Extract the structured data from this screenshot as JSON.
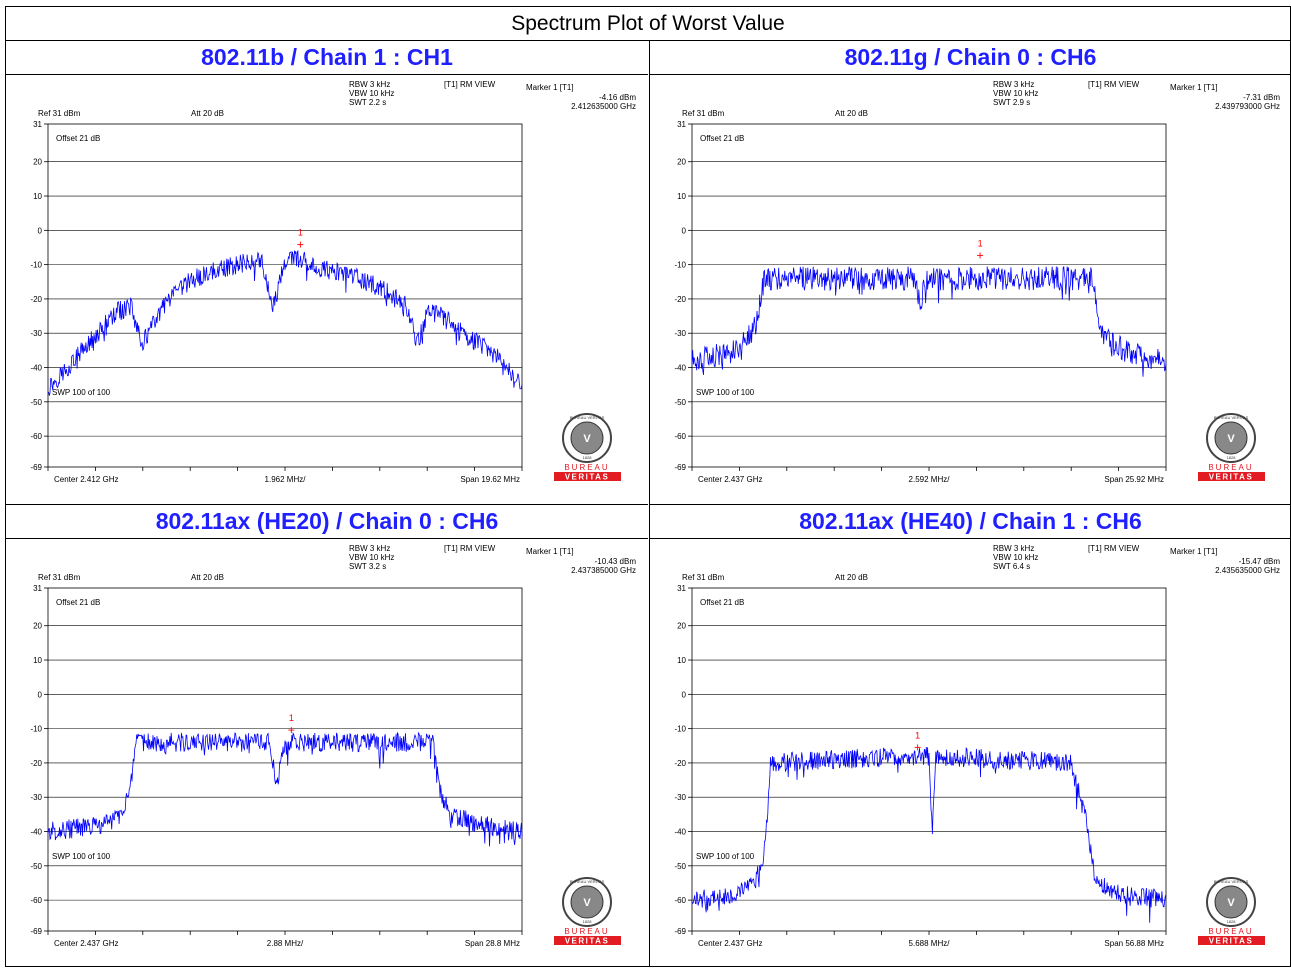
{
  "page_title": "Spectrum Plot of Worst Value",
  "logo": {
    "top_text": "BUREAU VERITAS",
    "year": "1828",
    "bottom_line1": "BUREAU",
    "bottom_line2": "VERITAS",
    "red": "#e31b23"
  },
  "colors": {
    "trace": "#0000ff",
    "marker": "#ff0000",
    "panel_title": "#1f1fff"
  },
  "chart_data": [
    {
      "type": "line",
      "title": "802.11b / Chain 1 : CH1",
      "header": {
        "rbw": "RBW 3 kHz",
        "vbw": "VBW 10 kHz",
        "swt": "SWT 2.2 s",
        "view": "[T1] RM VIEW",
        "ref": "Ref 31 dBm",
        "att": "Att  20 dB",
        "marker_label": "Marker 1 [T1]",
        "marker_level": "-4.16 dBm",
        "marker_freq": "2.412635000 GHz"
      },
      "offset": "Offset 21 dB",
      "sweep": "SWP 100 of 100",
      "footer": {
        "center": "Center 2.412 GHz",
        "div": "1.962 MHz/",
        "span": "Span 19.62 MHz"
      },
      "y_ticks": [
        "31",
        "20",
        "10",
        "0",
        "-10",
        "-20",
        "-30",
        "-40",
        "-50",
        "-60",
        "-69"
      ],
      "ylim": [
        -69,
        31
      ],
      "xlim": [
        2.40219,
        2.42181
      ],
      "x_unit": "GHz",
      "marker": {
        "label": "1",
        "x": 2.412635,
        "y": -4.16
      },
      "series": [
        {
          "x": [
            2.40219,
            2.403,
            2.404,
            2.405,
            2.4056,
            2.4061,
            2.407,
            2.408,
            2.409,
            2.41,
            2.411,
            2.4115,
            2.412,
            2.4125,
            2.413,
            2.414,
            2.415,
            2.416,
            2.417,
            2.4175,
            2.418,
            2.419,
            2.42,
            2.421,
            2.42181
          ],
          "y": [
            -46,
            -40,
            -32,
            -24,
            -22,
            -33,
            -22,
            -15,
            -12,
            -10,
            -8,
            -23,
            -9,
            -8,
            -10,
            -12,
            -14,
            -17,
            -22,
            -33,
            -22,
            -28,
            -33,
            -38,
            -46
          ]
        }
      ]
    },
    {
      "type": "line",
      "title": "802.11g / Chain 0 : CH6",
      "header": {
        "rbw": "RBW 3 kHz",
        "vbw": "VBW 10 kHz",
        "swt": "SWT 2.9 s",
        "view": "[T1] RM VIEW",
        "ref": "Ref 31 dBm",
        "att": "Att  20 dB",
        "marker_label": "Marker 1 [T1]",
        "marker_level": "-7.31 dBm",
        "marker_freq": "2.439793000 GHz"
      },
      "offset": "Offset 21 dB",
      "sweep": "SWP 100 of 100",
      "footer": {
        "center": "Center 2.437 GHz",
        "div": "2.592 MHz/",
        "span": "Span 25.92 MHz"
      },
      "y_ticks": [
        "31",
        "20",
        "10",
        "0",
        "-10",
        "-20",
        "-30",
        "-40",
        "-50",
        "-60",
        "-69"
      ],
      "ylim": [
        -69,
        31
      ],
      "xlim": [
        2.42404,
        2.44996
      ],
      "x_unit": "GHz",
      "marker": {
        "label": "1",
        "x": 2.439793,
        "y": -7.31
      },
      "series": [
        {
          "x": [
            2.42404,
            2.426,
            2.427,
            2.4275,
            2.428,
            2.43,
            2.434,
            2.4362,
            2.4365,
            2.4368,
            2.44,
            2.444,
            2.446,
            2.4463,
            2.447,
            2.448,
            2.44996
          ],
          "y": [
            -38,
            -36,
            -32,
            -28,
            -14,
            -14,
            -14,
            -14,
            -22,
            -14,
            -14,
            -14,
            -14,
            -28,
            -33,
            -36,
            -38
          ]
        }
      ]
    },
    {
      "type": "line",
      "title": "802.11ax (HE20) / Chain 0 : CH6",
      "header": {
        "rbw": "RBW 3 kHz",
        "vbw": "VBW 10 kHz",
        "swt": "SWT 3.2 s",
        "view": "[T1] RM VIEW",
        "ref": "Ref 31 dBm",
        "att": "Att  20 dB",
        "marker_label": "Marker 1 [T1]",
        "marker_level": "-10.43 dBm",
        "marker_freq": "2.437385000 GHz"
      },
      "offset": "Offset 21 dB",
      "sweep": "SWP 100 of 100",
      "footer": {
        "center": "Center 2.437 GHz",
        "div": "2.88 MHz/",
        "span": "Span 28.8 MHz"
      },
      "y_ticks": [
        "31",
        "20",
        "10",
        "0",
        "-10",
        "-20",
        "-30",
        "-40",
        "-50",
        "-60",
        "-69"
      ],
      "ylim": [
        -69,
        31
      ],
      "xlim": [
        2.4226,
        2.4514
      ],
      "x_unit": "GHz",
      "marker": {
        "label": "1",
        "x": 2.437385,
        "y": -10.43
      },
      "series": [
        {
          "x": [
            2.4226,
            2.426,
            2.427,
            2.4276,
            2.428,
            2.432,
            2.436,
            2.4365,
            2.437,
            2.4375,
            2.442,
            2.446,
            2.4464,
            2.447,
            2.449,
            2.4514
          ],
          "y": [
            -40,
            -38,
            -35,
            -28,
            -14,
            -14,
            -14,
            -26,
            -14,
            -14,
            -14,
            -14,
            -28,
            -35,
            -38,
            -40
          ]
        }
      ]
    },
    {
      "type": "line",
      "title": "802.11ax (HE40) / Chain 1 : CH6",
      "header": {
        "rbw": "RBW 3 kHz",
        "vbw": "VBW 10 kHz",
        "swt": "SWT 6.4 s",
        "view": "[T1] RM VIEW",
        "ref": "Ref 31 dBm",
        "att": "Att  20 dB",
        "marker_label": "Marker 1 [T1]",
        "marker_level": "-15.47 dBm",
        "marker_freq": "2.435635000 GHz"
      },
      "offset": "Offset 21 dB",
      "sweep": "SWP 100 of 100",
      "footer": {
        "center": "Center 2.437 GHz",
        "div": "5.688 MHz/",
        "span": "Span 56.88 MHz"
      },
      "y_ticks": [
        "31",
        "20",
        "10",
        "0",
        "-10",
        "-20",
        "-30",
        "-40",
        "-50",
        "-60",
        "-69"
      ],
      "ylim": [
        -69,
        31
      ],
      "xlim": [
        2.40856,
        2.46544
      ],
      "x_unit": "GHz",
      "marker": {
        "label": "1",
        "x": 2.435635,
        "y": -15.47
      },
      "series": [
        {
          "x": [
            2.40856,
            2.414,
            2.416,
            2.417,
            2.4175,
            2.418,
            2.426,
            2.434,
            2.437,
            2.4374,
            2.4378,
            2.446,
            2.454,
            2.456,
            2.457,
            2.46,
            2.46544
          ],
          "y": [
            -60,
            -58,
            -55,
            -50,
            -38,
            -20,
            -19,
            -18,
            -18,
            -40,
            -18,
            -19,
            -20,
            -38,
            -55,
            -58,
            -60
          ]
        }
      ]
    }
  ]
}
